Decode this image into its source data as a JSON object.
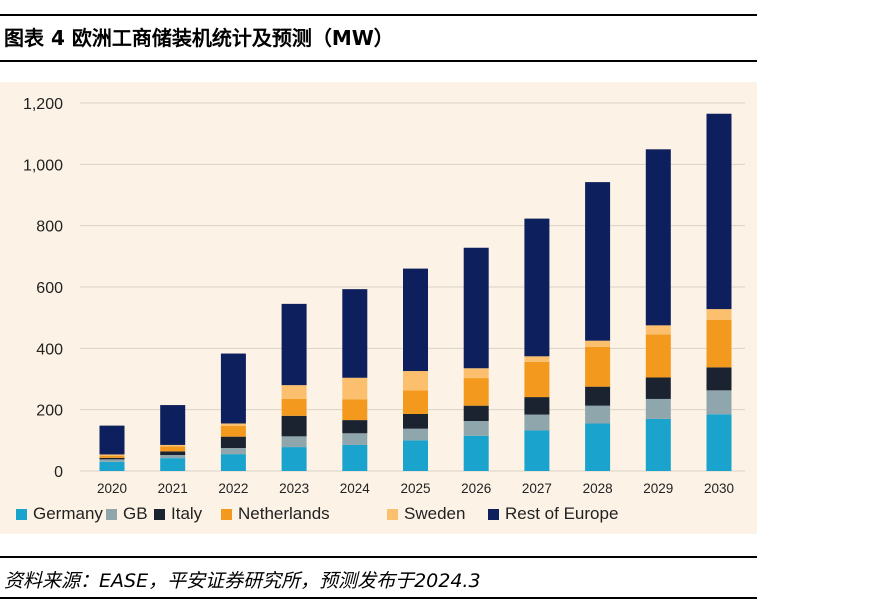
{
  "title": "图表 4 欧洲工商储装机统计及预测（MW）",
  "source": "资料来源：EASE，平安证券研究所，预测发布于2024.3",
  "chart_data": {
    "type": "bar",
    "stacked": true,
    "categories": [
      "2020",
      "2021",
      "2022",
      "2023",
      "2024",
      "2025",
      "2026",
      "2027",
      "2028",
      "2029",
      "2030"
    ],
    "y_ticks": [
      0,
      200,
      400,
      600,
      800,
      1000,
      1200
    ],
    "y_tick_labels": [
      "0",
      "200",
      "400",
      "600",
      "800",
      "1,000",
      "1,200"
    ],
    "ylim": [
      0,
      1200
    ],
    "grid": true,
    "legend_position": "bottom",
    "series": [
      {
        "name": "Germany",
        "color": "#1aa3cc",
        "values": [
          30,
          42,
          55,
          78,
          85,
          100,
          115,
          132,
          155,
          170,
          185
        ]
      },
      {
        "name": "GB",
        "color": "#8fa6ad",
        "values": [
          8,
          10,
          20,
          35,
          38,
          38,
          48,
          52,
          58,
          65,
          78
        ]
      },
      {
        "name": "Italy",
        "color": "#1b2230",
        "values": [
          5,
          12,
          37,
          67,
          43,
          48,
          50,
          57,
          62,
          70,
          75
        ]
      },
      {
        "name": "Netherlands",
        "color": "#f39a1e",
        "values": [
          7,
          16,
          35,
          55,
          68,
          77,
          90,
          115,
          130,
          140,
          155
        ]
      },
      {
        "name": "Sweden",
        "color": "#fbbf6e",
        "values": [
          4,
          5,
          8,
          45,
          70,
          63,
          32,
          18,
          20,
          30,
          35
        ]
      },
      {
        "name": "Rest of Europe",
        "color": "#0d1f5c",
        "values": [
          94,
          130,
          228,
          265,
          289,
          334,
          393,
          449,
          517,
          574,
          637
        ]
      }
    ]
  }
}
